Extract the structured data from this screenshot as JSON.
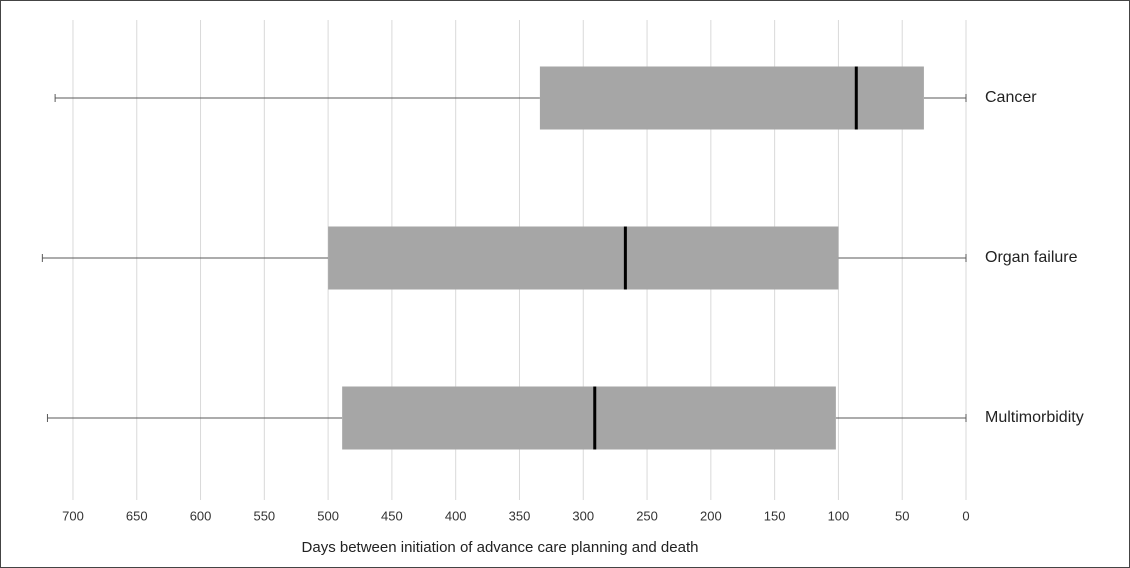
{
  "chart_data": {
    "type": "box",
    "orientation": "horizontal",
    "xlabel": "Days between initiation of advance care planning and death",
    "xlim": [
      730,
      0
    ],
    "xticks": [
      700,
      650,
      600,
      550,
      500,
      450,
      400,
      350,
      300,
      250,
      200,
      150,
      100,
      50,
      0
    ],
    "grid": true,
    "box_color": "#a6a6a6",
    "median_color": "#000000",
    "whisker_color": "#595959",
    "categories": [
      "Cancer",
      "Organ failure",
      "Multimorbidity"
    ],
    "boxes": [
      {
        "min": 0,
        "q1": 33,
        "median": 86,
        "q3": 334,
        "max": 714
      },
      {
        "min": 0,
        "q1": 100,
        "median": 267,
        "q3": 500,
        "max": 724
      },
      {
        "min": 0,
        "q1": 102,
        "median": 291,
        "q3": 489,
        "max": 720
      }
    ]
  }
}
